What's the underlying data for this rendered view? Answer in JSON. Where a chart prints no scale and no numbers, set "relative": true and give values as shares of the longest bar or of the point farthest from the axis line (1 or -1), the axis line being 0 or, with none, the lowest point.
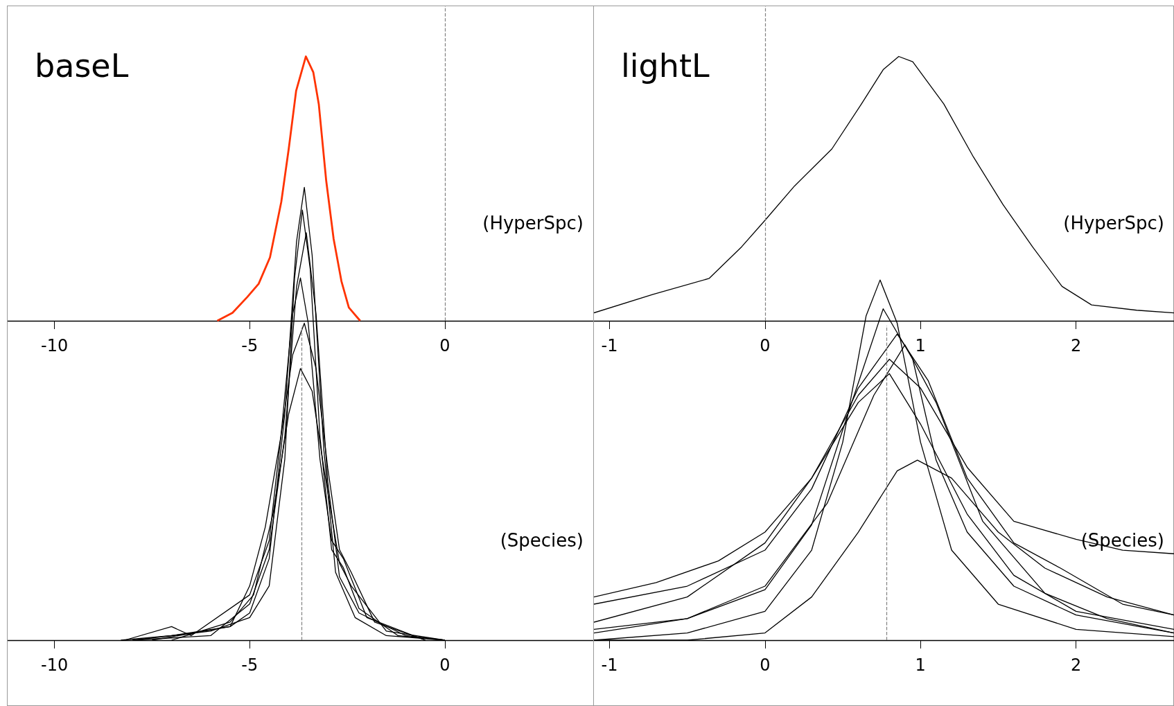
{
  "chart_data": [
    {
      "type": "line",
      "title": "baseL",
      "annotations": [
        "(HyperSpc)"
      ],
      "relative": true,
      "xlim": [
        -11.2,
        3.8
      ],
      "xticks": [
        -10,
        -5,
        0
      ],
      "grid": false,
      "ref_lines": [
        {
          "axis": "x",
          "value": 0,
          "color": "#808080",
          "line_style": "dashed"
        }
      ],
      "series": [
        {
          "color": "#ff3300",
          "x": [
            -5.83,
            -5.44,
            -5.06,
            -4.77,
            -4.48,
            -4.19,
            -4.0,
            -3.81,
            -3.56,
            -3.37,
            -3.23,
            -3.04,
            -2.85,
            -2.65,
            -2.46,
            -2.17
          ],
          "values": [
            0,
            0.03,
            0.09,
            0.14,
            0.24,
            0.45,
            0.65,
            0.87,
            1.0,
            0.94,
            0.82,
            0.53,
            0.31,
            0.15,
            0.05,
            0
          ]
        }
      ]
    },
    {
      "type": "line",
      "title": "lightL",
      "annotations": [
        "(HyperSpc)"
      ],
      "relative": true,
      "xlim": [
        -1.1,
        2.63
      ],
      "xticks": [
        -1,
        0,
        1,
        2
      ],
      "grid": false,
      "ref_lines": [
        {
          "axis": "x",
          "value": 0,
          "color": "#808080",
          "line_style": "dashed"
        }
      ],
      "series": [
        {
          "color": "#000000",
          "x": [
            -1.1,
            -0.72,
            -0.36,
            -0.15,
            0,
            0.19,
            0.43,
            0.62,
            0.76,
            0.86,
            0.95,
            1.15,
            1.34,
            1.53,
            1.72,
            1.91,
            2.1,
            2.39,
            2.63
          ],
          "values": [
            0.03,
            0.1,
            0.16,
            0.28,
            0.38,
            0.51,
            0.65,
            0.82,
            0.95,
            1.0,
            0.98,
            0.82,
            0.62,
            0.44,
            0.28,
            0.13,
            0.06,
            0.04,
            0.03
          ]
        }
      ]
    },
    {
      "type": "line",
      "annotations": [
        "(Species)"
      ],
      "relative": true,
      "xlim": [
        -11.2,
        3.8
      ],
      "xticks": [
        -10,
        -5,
        0
      ],
      "grid": false,
      "ref_lines": [
        {
          "axis": "x",
          "value": -3.67,
          "color": "#808080",
          "line_style": "dashed"
        }
      ],
      "series": [
        {
          "color": "#000000",
          "x": [
            -8.3,
            -7,
            -5.5,
            -5,
            -4.5,
            -4.1,
            -3.8,
            -3.6,
            -3.4,
            -3.1,
            -2.8,
            -2.3,
            -1.5,
            0
          ],
          "values": [
            0,
            0.01,
            0.03,
            0.06,
            0.18,
            0.5,
            0.88,
            1,
            0.85,
            0.42,
            0.15,
            0.05,
            0.01,
            0
          ]
        },
        {
          "color": "#000000",
          "x": [
            -8,
            -6,
            -5,
            -4.5,
            -4.1,
            -3.8,
            -3.55,
            -3.3,
            -3,
            -2.7,
            -2.2,
            -1,
            0
          ],
          "values": [
            0,
            0.01,
            0.08,
            0.2,
            0.45,
            0.78,
            0.9,
            0.72,
            0.35,
            0.14,
            0.06,
            0.01,
            0
          ]
        },
        {
          "color": "#000000",
          "x": [
            -8.2,
            -7,
            -6.5,
            -5,
            -4.5,
            -4.2,
            -3.9,
            -3.7,
            -3.5,
            -3.2,
            -2.9,
            -2.6,
            -2,
            -0.5
          ],
          "values": [
            0,
            0.03,
            0.01,
            0.1,
            0.22,
            0.45,
            0.72,
            0.8,
            0.7,
            0.4,
            0.22,
            0.18,
            0.05,
            0
          ]
        },
        {
          "color": "#000000",
          "x": [
            -7.5,
            -5.5,
            -5,
            -4.6,
            -4.2,
            -3.9,
            -3.6,
            -3.3,
            -3,
            -2.7,
            -2.4,
            -1.8,
            -0.5
          ],
          "values": [
            0,
            0.03,
            0.12,
            0.25,
            0.45,
            0.63,
            0.7,
            0.6,
            0.38,
            0.2,
            0.15,
            0.04,
            0
          ]
        },
        {
          "color": "#000000",
          "x": [
            -8,
            -6,
            -5,
            -4.5,
            -4.1,
            -3.85,
            -3.65,
            -3.45,
            -3.2,
            -2.9,
            -2.6,
            -2.2,
            -1.2,
            0
          ],
          "values": [
            0,
            0.02,
            0.05,
            0.12,
            0.4,
            0.8,
            0.95,
            0.82,
            0.45,
            0.2,
            0.16,
            0.07,
            0.01,
            0
          ]
        },
        {
          "color": "#000000",
          "x": [
            -7,
            -5.5,
            -4.9,
            -4.4,
            -4,
            -3.7,
            -3.4,
            -3.1,
            -2.7,
            -2.4,
            -1.5,
            0
          ],
          "values": [
            0,
            0.04,
            0.1,
            0.28,
            0.5,
            0.6,
            0.55,
            0.38,
            0.17,
            0.12,
            0.02,
            0
          ]
        }
      ]
    },
    {
      "type": "line",
      "annotations": [
        "(Species)"
      ],
      "relative": true,
      "xlim": [
        -1.1,
        2.63
      ],
      "xticks": [
        -1,
        0,
        1,
        2
      ],
      "grid": false,
      "ref_lines": [
        {
          "axis": "x",
          "value": 0.78,
          "color": "#808080",
          "line_style": "dashed"
        }
      ],
      "series": [
        {
          "color": "#000000",
          "x": [
            -1.1,
            -0.5,
            0,
            0.3,
            0.5,
            0.65,
            0.74,
            0.85,
            1,
            1.2,
            1.5,
            2,
            2.63
          ],
          "values": [
            0,
            0.02,
            0.08,
            0.25,
            0.55,
            0.9,
            1,
            0.88,
            0.55,
            0.25,
            0.1,
            0.03,
            0.01
          ]
        },
        {
          "color": "#000000",
          "x": [
            -1.1,
            -0.5,
            0,
            0.3,
            0.55,
            0.76,
            0.95,
            1.1,
            1.3,
            1.6,
            2,
            2.63
          ],
          "values": [
            0.03,
            0.06,
            0.14,
            0.32,
            0.65,
            0.92,
            0.78,
            0.5,
            0.3,
            0.15,
            0.07,
            0.02
          ]
        },
        {
          "color": "#000000",
          "x": [
            -1.1,
            -0.5,
            0,
            0.3,
            0.6,
            0.85,
            0.98,
            1.2,
            1.5,
            1.8,
            2.2,
            2.63
          ],
          "values": [
            0,
            0,
            0.02,
            0.12,
            0.3,
            0.47,
            0.5,
            0.45,
            0.3,
            0.2,
            0.12,
            0.07
          ]
        },
        {
          "color": "#000000",
          "x": [
            -1.1,
            -0.5,
            0,
            0.3,
            0.6,
            0.85,
            1.05,
            1.3,
            1.6,
            1.9,
            2.3,
            2.63
          ],
          "values": [
            0.1,
            0.15,
            0.25,
            0.42,
            0.7,
            0.85,
            0.72,
            0.45,
            0.27,
            0.2,
            0.1,
            0.07
          ]
        },
        {
          "color": "#000000",
          "x": [
            -1.1,
            -0.5,
            0,
            0.3,
            0.6,
            0.8,
            1,
            1.3,
            1.6,
            2,
            2.3,
            2.63
          ],
          "values": [
            0.05,
            0.12,
            0.27,
            0.45,
            0.68,
            0.78,
            0.7,
            0.48,
            0.33,
            0.28,
            0.25,
            0.24
          ]
        },
        {
          "color": "#000000",
          "x": [
            -1.1,
            -0.7,
            -0.3,
            0,
            0.3,
            0.6,
            0.8,
            1,
            1.3,
            1.6,
            2,
            2.63
          ],
          "values": [
            0.12,
            0.16,
            0.22,
            0.3,
            0.45,
            0.66,
            0.74,
            0.6,
            0.35,
            0.18,
            0.08,
            0.03
          ]
        },
        {
          "color": "#000000",
          "x": [
            -1.1,
            -0.5,
            0,
            0.4,
            0.7,
            0.9,
            1.1,
            1.4,
            1.8,
            2.2,
            2.63
          ],
          "values": [
            0.02,
            0.06,
            0.15,
            0.38,
            0.68,
            0.82,
            0.66,
            0.33,
            0.13,
            0.06,
            0.02
          ]
        }
      ]
    }
  ]
}
